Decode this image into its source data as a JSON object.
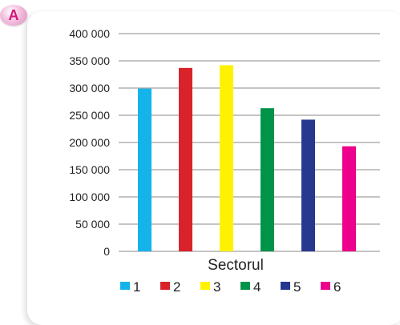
{
  "panel_label": "A",
  "chart_data": {
    "type": "bar",
    "categories": [
      "1",
      "2",
      "3",
      "4",
      "5",
      "6"
    ],
    "values": [
      299000,
      337000,
      342000,
      263000,
      242000,
      193000
    ],
    "colors": [
      "#14b4ea",
      "#d8232a",
      "#fff200",
      "#00944a",
      "#27388f",
      "#ec008c"
    ],
    "xlabel": "Sectorul",
    "ylabel": "",
    "ylim": [
      0,
      400000
    ],
    "yticks": [
      "0",
      "50 000",
      "100 000",
      "150 000",
      "200 000",
      "250 000",
      "300 000",
      "350 000",
      "400 000"
    ],
    "grid": true,
    "legend": [
      "1",
      "2",
      "3",
      "4",
      "5",
      "6"
    ],
    "legend_position": "bottom"
  }
}
